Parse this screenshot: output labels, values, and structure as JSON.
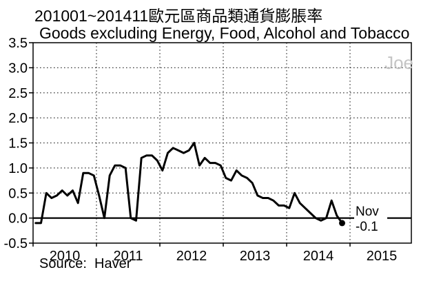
{
  "chart_data": {
    "type": "line",
    "title": "201001~201411歐元區商品類通貨膨脹率",
    "subtitle": "Goods excluding Energy, Food, Alcohol and Tobacco",
    "source": "Source:  Haver",
    "watermark": "Joe",
    "x_range": "2010-01 to 2014-11, monthly",
    "x_tick_labels": [
      "2010",
      "2011",
      "2012",
      "2013",
      "2014",
      "2015"
    ],
    "y_tick_labels": [
      "3.5",
      "3.0",
      "2.5",
      "2.0",
      "1.5",
      "1.0",
      "0.5",
      "0.0",
      "-0.5"
    ],
    "ylim": [
      -0.5,
      3.5
    ],
    "y_gridlines_dotted": [
      3.0,
      2.5,
      2.0,
      1.5,
      1.0,
      0.5
    ],
    "x_gridline_years": [
      2011,
      2012,
      2013,
      2014,
      2015
    ],
    "zero_line": 0.0,
    "grid_on": true,
    "legend": "none",
    "series": [
      {
        "name": "Goods excluding Energy, Food, Alcohol and Tobacco (y/y %)",
        "start_month": "2010-01",
        "end_month": "2014-11",
        "values": [
          -0.1,
          -0.1,
          0.5,
          0.4,
          0.45,
          0.55,
          0.45,
          0.55,
          0.3,
          0.9,
          0.9,
          0.85,
          0.45,
          0.0,
          0.85,
          1.05,
          1.05,
          1.0,
          0.0,
          -0.05,
          1.2,
          1.25,
          1.25,
          1.15,
          0.95,
          1.3,
          1.4,
          1.35,
          1.3,
          1.35,
          1.5,
          1.05,
          1.2,
          1.1,
          1.1,
          1.05,
          0.8,
          0.75,
          0.95,
          0.85,
          0.8,
          0.7,
          0.45,
          0.4,
          0.4,
          0.35,
          0.25,
          0.25,
          0.2,
          0.5,
          0.3,
          0.2,
          0.1,
          0.0,
          -0.05,
          0.0,
          0.35,
          0.05,
          -0.1
        ]
      }
    ],
    "last_point": {
      "month": "2014-11",
      "value": -0.1
    },
    "annotation": {
      "month_label": "Nov",
      "value_label": "-0.1"
    },
    "colors": {
      "line": "#000000",
      "grid": "#3a3a3a",
      "frame": "#000000",
      "watermark": "#c5c5c5",
      "background": "#ffffff"
    }
  }
}
